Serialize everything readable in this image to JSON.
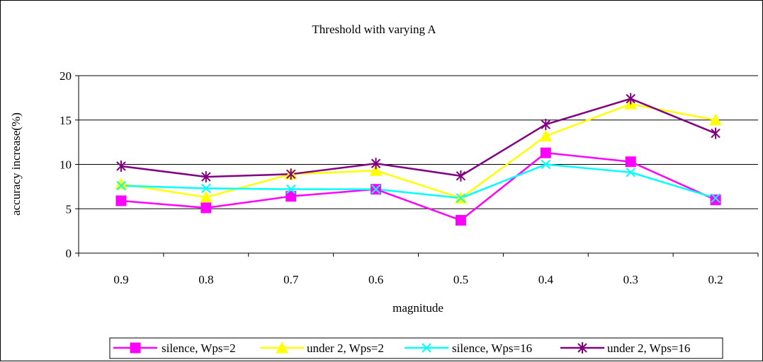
{
  "chart_data": {
    "type": "line",
    "title": "Threshold with varying A",
    "xlabel": "magnitude",
    "ylabel": "accuracy increase(%)",
    "categories": [
      "0.9",
      "0.8",
      "0.7",
      "0.6",
      "0.5",
      "0.4",
      "0.3",
      "0.2"
    ],
    "ylim": [
      0,
      20
    ],
    "yticks": [
      0,
      5,
      10,
      15,
      20
    ],
    "grid": true,
    "legend_position": "bottom",
    "series": [
      {
        "name": "silence, Wps=2",
        "color": "#ff00ff",
        "marker": "square",
        "values": [
          5.9,
          5.1,
          6.4,
          7.2,
          3.7,
          11.3,
          10.3,
          6.0
        ]
      },
      {
        "name": "under 2, Wps=2",
        "color": "#ffff00",
        "marker": "triangle",
        "values": [
          7.8,
          6.3,
          8.9,
          9.3,
          6.2,
          13.2,
          16.8,
          15.0
        ]
      },
      {
        "name": "silence, Wps=16",
        "color": "#00ffff",
        "marker": "x",
        "values": [
          7.6,
          7.3,
          7.2,
          7.2,
          6.2,
          10.0,
          9.1,
          6.2
        ]
      },
      {
        "name": "under 2, Wps=16",
        "color": "#800080",
        "marker": "star",
        "values": [
          9.8,
          8.6,
          8.9,
          10.1,
          8.7,
          14.5,
          17.4,
          13.5
        ]
      }
    ]
  }
}
